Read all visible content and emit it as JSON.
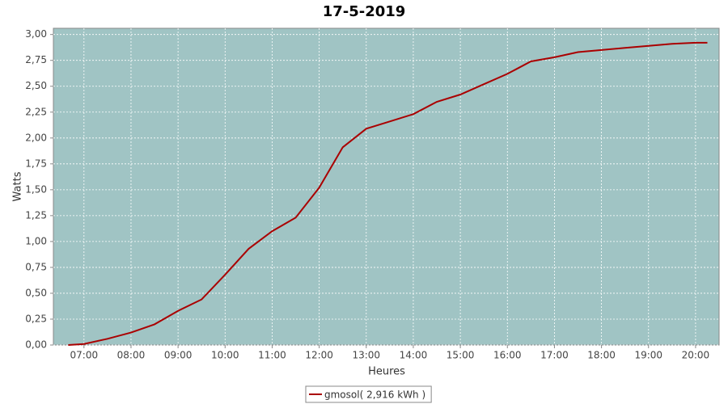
{
  "chart_data": {
    "type": "line",
    "title": "17-5-2019",
    "x_label": "Heures",
    "y_label": "Watts",
    "x": [
      "06:40",
      "07:00",
      "07:30",
      "08:00",
      "08:30",
      "09:00",
      "09:30",
      "10:00",
      "10:30",
      "11:00",
      "11:30",
      "12:00",
      "12:30",
      "13:00",
      "13:30",
      "14:00",
      "14:30",
      "15:00",
      "15:30",
      "16:00",
      "16:30",
      "17:00",
      "17:30",
      "18:00",
      "18:30",
      "19:00",
      "19:30",
      "20:00",
      "20:15"
    ],
    "series": [
      {
        "name": "gmosol( 2,916 kWh )",
        "color": "#aa0000",
        "values": [
          0.0,
          0.01,
          0.06,
          0.12,
          0.2,
          0.33,
          0.44,
          0.68,
          0.93,
          1.1,
          1.23,
          1.52,
          1.91,
          2.09,
          2.16,
          2.23,
          2.35,
          2.42,
          2.52,
          2.62,
          2.74,
          2.78,
          2.83,
          2.85,
          2.87,
          2.89,
          2.91,
          2.92,
          2.92
        ]
      }
    ],
    "xlim": [
      "06:21",
      "20:30"
    ],
    "xticks": [
      "07:00",
      "08:00",
      "09:00",
      "10:00",
      "11:00",
      "12:00",
      "13:00",
      "14:00",
      "15:00",
      "16:00",
      "17:00",
      "18:00",
      "19:00",
      "20:00"
    ],
    "ylim": [
      0,
      3.06
    ],
    "yticks": [
      {
        "value": 0,
        "label": "0,00"
      },
      {
        "value": 0.25,
        "label": "0,25"
      },
      {
        "value": 0.5,
        "label": "0,50"
      },
      {
        "value": 0.75,
        "label": "0,75"
      },
      {
        "value": 1,
        "label": "1,00"
      },
      {
        "value": 1.25,
        "label": "1,25"
      },
      {
        "value": 1.5,
        "label": "1,50"
      },
      {
        "value": 1.75,
        "label": "1,75"
      },
      {
        "value": 2,
        "label": "2,00"
      },
      {
        "value": 2.25,
        "label": "2,25"
      },
      {
        "value": 2.5,
        "label": "2,50"
      },
      {
        "value": 2.75,
        "label": "2,75"
      },
      {
        "value": 3,
        "label": "3,00"
      }
    ],
    "grid": true,
    "plot_background": "#a0c4c4",
    "legend": "bottom"
  }
}
